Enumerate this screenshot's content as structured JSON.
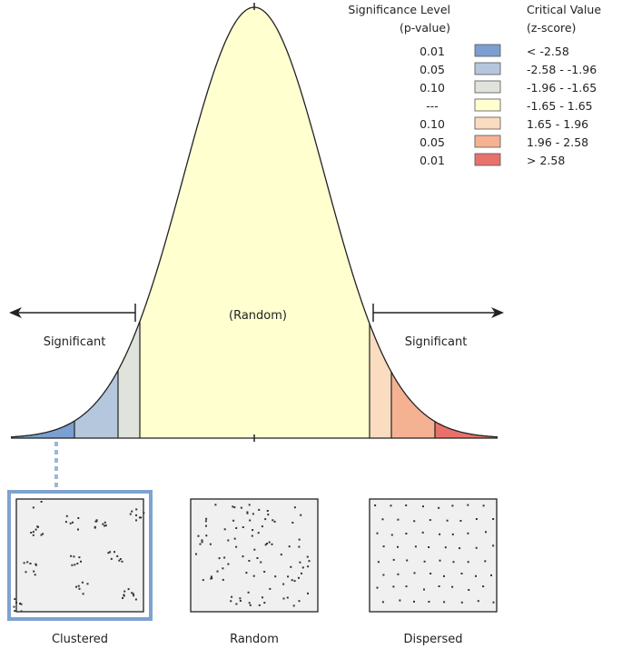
{
  "legend": {
    "sig_header_line1": "Significance Level",
    "sig_header_line2": "(p-value)",
    "crit_header_line1": "Critical Value",
    "crit_header_line2": "(z-score)",
    "rows": [
      {
        "p": "0.01",
        "z": "< -2.58",
        "color": "#7b9fd0"
      },
      {
        "p": "0.05",
        "z": "-2.58 - -1.96",
        "color": "#b4c7dd"
      },
      {
        "p": "0.10",
        "z": "-1.96 - -1.65",
        "color": "#dfe3dc"
      },
      {
        "p": "---",
        "z": "-1.65 - 1.65",
        "color": "#ffffd0"
      },
      {
        "p": "0.10",
        "z": "1.65 - 1.96",
        "color": "#fadcc0"
      },
      {
        "p": "0.05",
        "z": "1.96 - 2.58",
        "color": "#f5b293"
      },
      {
        "p": "0.01",
        "z": "> 2.58",
        "color": "#e8726b"
      }
    ]
  },
  "curve": {
    "center_label": "(Random)",
    "left_label": "Significant",
    "right_label": "Significant"
  },
  "patterns": {
    "clustered": "Clustered",
    "random": "Random",
    "dispersed": "Dispersed"
  },
  "colors": {
    "highlight_border": "#7fa3cf",
    "panel_fill": "#f0f0f0",
    "curve_stroke": "#222222"
  }
}
